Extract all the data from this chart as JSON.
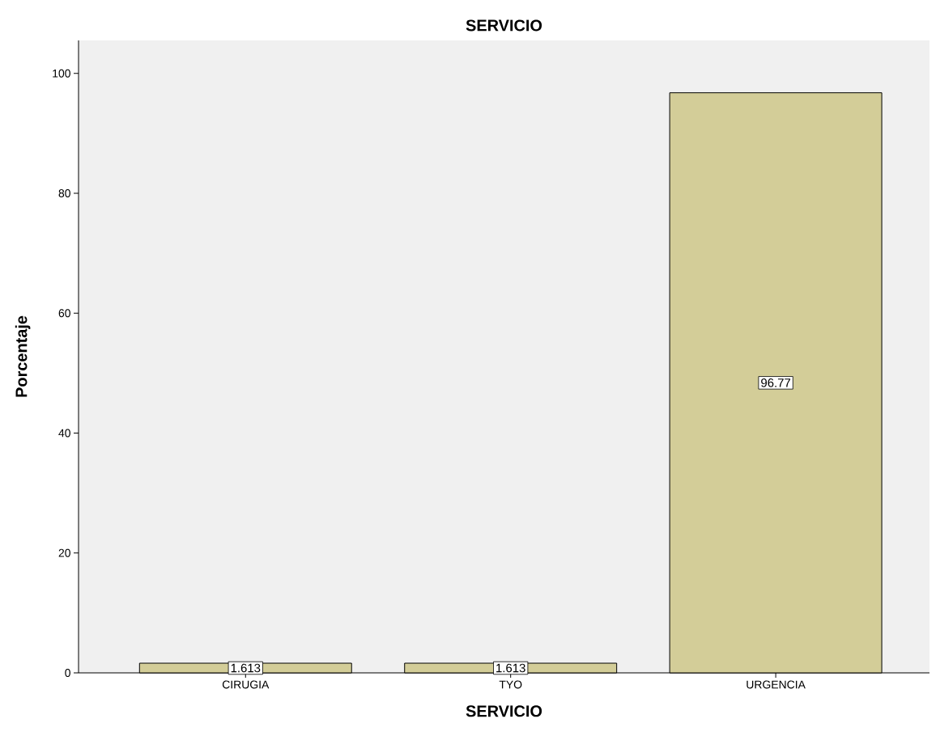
{
  "chart_data": {
    "type": "bar",
    "title": "SERVICIO",
    "xlabel": "SERVICIO",
    "ylabel": "Porcentaje",
    "categories": [
      "CIRUGIA",
      "TYO",
      "URGENCIA"
    ],
    "values": [
      1.613,
      1.613,
      96.77
    ],
    "color": "#d3cd98",
    "ylim": [
      0,
      105.5
    ],
    "yticks": [
      0,
      20,
      40,
      60,
      80,
      100
    ],
    "data_labels": true
  }
}
